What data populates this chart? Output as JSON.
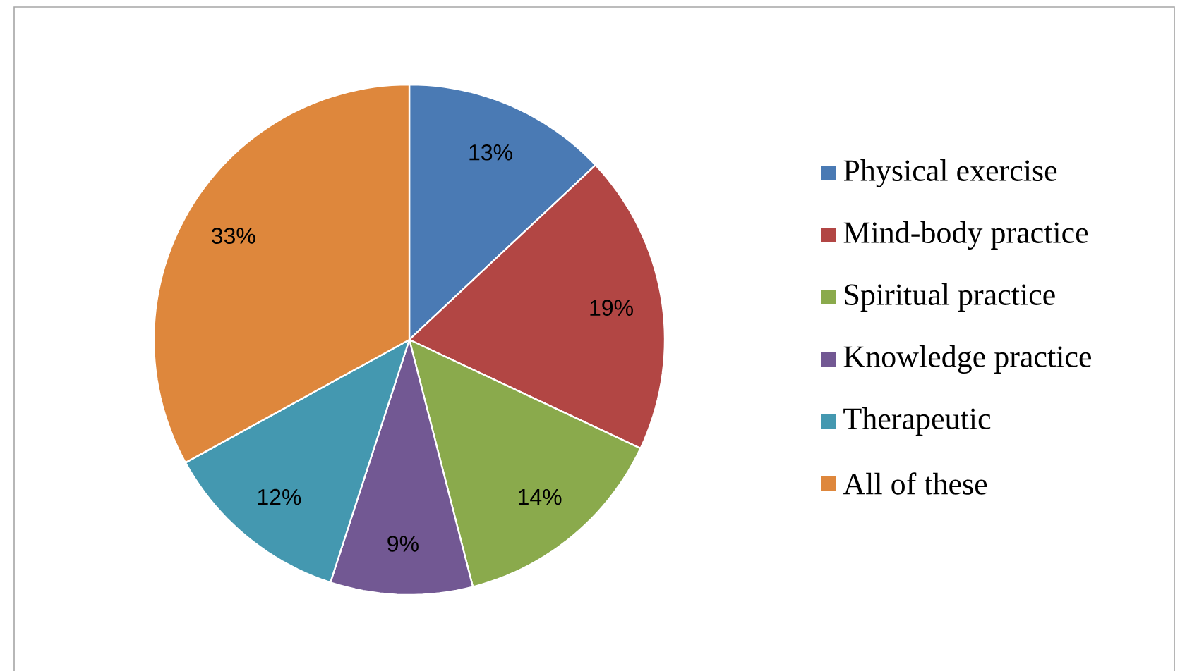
{
  "chart_data": {
    "type": "pie",
    "categories": [
      "Physical exercise",
      "Mind-body practice",
      "Spiritual practice",
      "Knowledge practice",
      "Therapeutic",
      "All of these"
    ],
    "values": [
      13,
      19,
      14,
      9,
      12,
      33
    ],
    "value_labels": [
      "13%",
      "19%",
      "14%",
      "9%",
      "12%",
      "33%"
    ],
    "colors": [
      "#4a7ab4",
      "#b24644",
      "#8aaa4c",
      "#725893",
      "#4498b0",
      "#de873c"
    ],
    "legend": "right"
  }
}
